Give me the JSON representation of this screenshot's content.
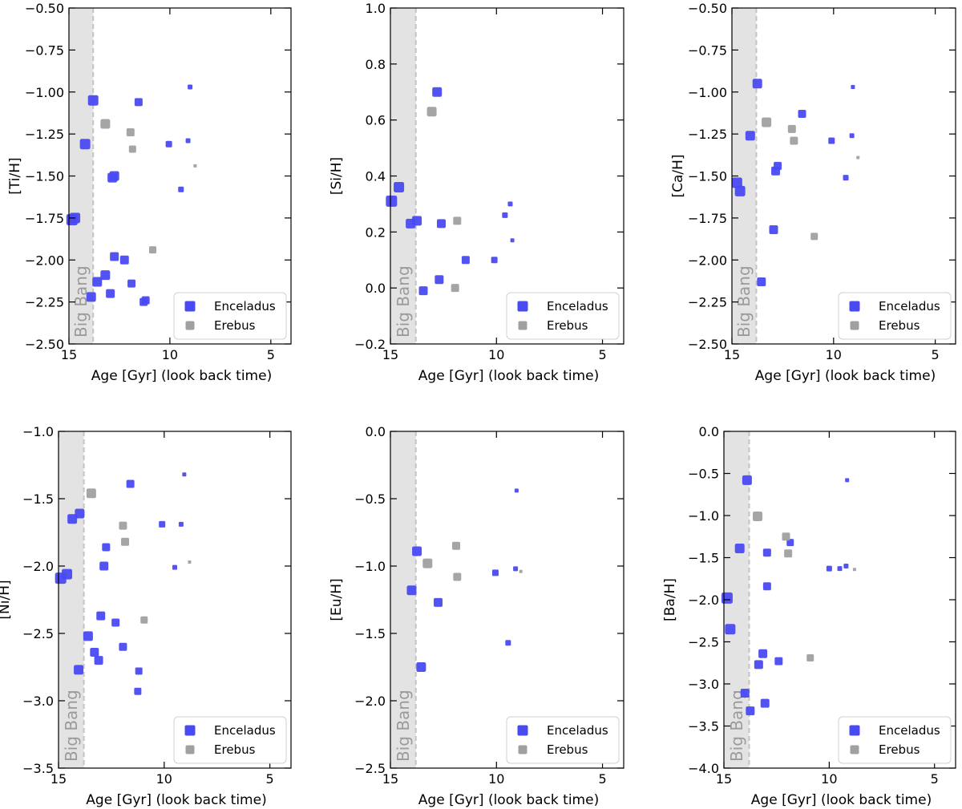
{
  "figure": {
    "series_colors": {
      "Enceladus": "#4a4af2",
      "Erebus": "#a0a0a0"
    },
    "band_color": "#e3e3e3",
    "band_line_color": "#c4c4c4"
  },
  "chart_data": [
    {
      "id": "ti",
      "type": "scatter",
      "xlabel": "Age [Gyr] (look back time)",
      "ylabel": "[Ti/H]",
      "xlim": [
        15,
        4
      ],
      "ylim": [
        -2.5,
        -0.5
      ],
      "xticks": [
        15,
        10,
        5
      ],
      "xtick_labels": [
        "15",
        "10",
        "5"
      ],
      "yticks": [
        -2.5,
        -2.25,
        -2.0,
        -1.75,
        -1.5,
        -1.25,
        -1.0,
        -0.75,
        -0.5
      ],
      "ytick_labels": [
        "−2.50",
        "−2.25",
        "−2.00",
        "−1.75",
        "−1.50",
        "−1.25",
        "−1.00",
        "−0.75",
        "−0.50"
      ],
      "band": {
        "from": 15,
        "to": 13.8,
        "label": "Big Bang"
      },
      "legend": {
        "position": "lower-right",
        "entries": [
          "Enceladus",
          "Erebus"
        ]
      },
      "series": [
        {
          "name": "Enceladus",
          "points": [
            [
              14.85,
              -1.76,
              14
            ],
            [
              14.7,
              -1.75,
              13
            ],
            [
              14.2,
              -1.31,
              13
            ],
            [
              13.8,
              -1.05,
              13
            ],
            [
              12.85,
              -1.51,
              12
            ],
            [
              12.75,
              -1.5,
              12
            ],
            [
              12.75,
              -1.98,
              11
            ],
            [
              12.25,
              -2.0,
              11
            ],
            [
              11.9,
              -2.14,
              10
            ],
            [
              11.55,
              -1.06,
              10
            ],
            [
              11.3,
              -2.25,
              10
            ],
            [
              11.2,
              -2.24,
              10
            ],
            [
              10.05,
              -1.31,
              8
            ],
            [
              9.45,
              -1.58,
              7
            ],
            [
              9.1,
              -1.29,
              6
            ],
            [
              9.0,
              -0.97,
              6
            ],
            [
              13.9,
              -2.22,
              12
            ],
            [
              13.6,
              -2.13,
              12
            ],
            [
              13.2,
              -2.09,
              12
            ],
            [
              12.95,
              -2.2,
              11
            ]
          ]
        },
        {
          "name": "Erebus",
          "points": [
            [
              13.2,
              -1.19,
              12
            ],
            [
              11.95,
              -1.24,
              10
            ],
            [
              11.85,
              -1.34,
              9
            ],
            [
              10.85,
              -1.94,
              9
            ],
            [
              8.75,
              -1.44,
              4
            ]
          ]
        }
      ]
    },
    {
      "id": "si",
      "type": "scatter",
      "xlabel": "Age [Gyr] (look back time)",
      "ylabel": "[Si/H]",
      "xlim": [
        15,
        4
      ],
      "ylim": [
        -0.2,
        1.0
      ],
      "xticks": [
        15,
        10,
        5
      ],
      "xtick_labels": [
        "15",
        "10",
        "5"
      ],
      "yticks": [
        -0.2,
        0.0,
        0.2,
        0.4,
        0.6,
        0.8,
        1.0
      ],
      "ytick_labels": [
        "−0.2",
        "0.0",
        "0.2",
        "0.4",
        "0.6",
        "0.8",
        "1.0"
      ],
      "band": {
        "from": 15,
        "to": 13.8,
        "label": "Big Bang"
      },
      "legend": {
        "position": "lower-right",
        "entries": [
          "Enceladus",
          "Erebus"
        ]
      },
      "series": [
        {
          "name": "Enceladus",
          "points": [
            [
              14.95,
              0.31,
              14
            ],
            [
              14.6,
              0.36,
              13
            ],
            [
              14.05,
              0.23,
              12
            ],
            [
              13.75,
              0.24,
              12
            ],
            [
              13.45,
              -0.01,
              11
            ],
            [
              12.8,
              0.7,
              12
            ],
            [
              12.7,
              0.03,
              11
            ],
            [
              12.6,
              0.23,
              11
            ],
            [
              11.45,
              0.1,
              10
            ],
            [
              10.1,
              0.1,
              8
            ],
            [
              9.6,
              0.26,
              7
            ],
            [
              9.35,
              0.3,
              6
            ],
            [
              9.25,
              0.17,
              5
            ]
          ]
        },
        {
          "name": "Erebus",
          "points": [
            [
              13.05,
              0.63,
              12
            ],
            [
              11.85,
              0.24,
              10
            ],
            [
              11.95,
              0.0,
              10
            ]
          ]
        }
      ]
    },
    {
      "id": "ca",
      "type": "scatter",
      "xlabel": "Age [Gyr] (look back time)",
      "ylabel": "[Ca/H]",
      "xlim": [
        15,
        4
      ],
      "ylim": [
        -2.5,
        -0.5
      ],
      "xticks": [
        15,
        10,
        5
      ],
      "xtick_labels": [
        "15",
        "10",
        "5"
      ],
      "yticks": [
        -2.5,
        -2.25,
        -2.0,
        -1.75,
        -1.5,
        -1.25,
        -1.0,
        -0.75,
        -0.5
      ],
      "ytick_labels": [
        "−2.50",
        "−2.25",
        "−2.00",
        "−1.75",
        "−1.50",
        "−1.25",
        "−1.00",
        "−0.75",
        "−0.50"
      ],
      "band": {
        "from": 15,
        "to": 13.8,
        "label": "Big Bang"
      },
      "legend": {
        "position": "lower-right",
        "entries": [
          "Enceladus",
          "Erebus"
        ]
      },
      "series": [
        {
          "name": "Enceladus",
          "points": [
            [
              14.75,
              -1.54,
              13
            ],
            [
              14.6,
              -1.59,
              13
            ],
            [
              14.1,
              -1.26,
              12
            ],
            [
              13.75,
              -0.95,
              12
            ],
            [
              13.55,
              -2.13,
              11
            ],
            [
              12.95,
              -1.82,
              11
            ],
            [
              12.85,
              -1.47,
              11
            ],
            [
              12.75,
              -1.44,
              10
            ],
            [
              11.55,
              -1.13,
              10
            ],
            [
              10.1,
              -1.29,
              8
            ],
            [
              9.4,
              -1.51,
              7
            ],
            [
              9.1,
              -1.26,
              6
            ],
            [
              9.05,
              -0.97,
              5
            ]
          ]
        },
        {
          "name": "Erebus",
          "points": [
            [
              13.3,
              -1.18,
              12
            ],
            [
              12.05,
              -1.22,
              10
            ],
            [
              11.95,
              -1.29,
              10
            ],
            [
              10.95,
              -1.86,
              9
            ],
            [
              8.8,
              -1.39,
              4
            ]
          ]
        }
      ]
    },
    {
      "id": "ni",
      "type": "scatter",
      "xlabel": "Age [Gyr] (look back time)",
      "ylabel": "[Ni/H]",
      "xlim": [
        15,
        4
      ],
      "ylim": [
        -3.5,
        -1.0
      ],
      "xticks": [
        15,
        10,
        5
      ],
      "xtick_labels": [
        "15",
        "10",
        "5"
      ],
      "yticks": [
        -3.5,
        -3.0,
        -2.5,
        -2.0,
        -1.5,
        -1.0
      ],
      "ytick_labels": [
        "−3.5",
        "−3.0",
        "−2.5",
        "−2.0",
        "−1.5",
        "−1.0"
      ],
      "band": {
        "from": 15,
        "to": 13.8,
        "label": "Big Bang"
      },
      "legend": {
        "position": "lower-right",
        "entries": [
          "Enceladus",
          "Erebus"
        ]
      },
      "series": [
        {
          "name": "Enceladus",
          "points": [
            [
              14.9,
              -2.09,
              14
            ],
            [
              14.6,
              -2.06,
              13
            ],
            [
              14.35,
              -1.65,
              12
            ],
            [
              14.0,
              -1.61,
              12
            ],
            [
              14.05,
              -2.77,
              12
            ],
            [
              13.6,
              -2.52,
              12
            ],
            [
              13.3,
              -2.64,
              11
            ],
            [
              13.1,
              -2.7,
              11
            ],
            [
              13.0,
              -2.37,
              11
            ],
            [
              12.85,
              -2.0,
              11
            ],
            [
              12.75,
              -1.86,
              10
            ],
            [
              12.3,
              -2.42,
              10
            ],
            [
              11.95,
              -2.6,
              10
            ],
            [
              11.6,
              -1.39,
              10
            ],
            [
              11.2,
              -2.78,
              9
            ],
            [
              11.25,
              -2.93,
              9
            ],
            [
              10.1,
              -1.69,
              8
            ],
            [
              9.5,
              -2.01,
              6
            ],
            [
              9.2,
              -1.69,
              6
            ],
            [
              9.05,
              -1.32,
              5
            ]
          ]
        },
        {
          "name": "Erebus",
          "points": [
            [
              13.45,
              -1.46,
              12
            ],
            [
              11.95,
              -1.7,
              10
            ],
            [
              11.85,
              -1.82,
              10
            ],
            [
              10.95,
              -2.4,
              9
            ],
            [
              8.8,
              -1.97,
              4
            ]
          ]
        }
      ]
    },
    {
      "id": "eu",
      "type": "scatter",
      "xlabel": "Age [Gyr] (look back time)",
      "ylabel": "[Eu/H]",
      "xlim": [
        15,
        4
      ],
      "ylim": [
        -2.5,
        0.0
      ],
      "xticks": [
        15,
        10,
        5
      ],
      "xtick_labels": [
        "15",
        "10",
        "5"
      ],
      "yticks": [
        -2.5,
        -2.0,
        -1.5,
        -1.0,
        -0.5,
        0.0
      ],
      "ytick_labels": [
        "−2.5",
        "−2.0",
        "−1.5",
        "−1.0",
        "−0.5",
        "0.0"
      ],
      "band": {
        "from": 15,
        "to": 13.8,
        "label": "Big Bang"
      },
      "legend": {
        "position": "lower-right",
        "entries": [
          "Enceladus",
          "Erebus"
        ]
      },
      "series": [
        {
          "name": "Enceladus",
          "points": [
            [
              14.0,
              -1.18,
              12
            ],
            [
              13.55,
              -1.75,
              12
            ],
            [
              13.75,
              -0.89,
              12
            ],
            [
              12.75,
              -1.27,
              11
            ],
            [
              10.05,
              -1.05,
              8
            ],
            [
              9.45,
              -1.57,
              7
            ],
            [
              9.1,
              -1.02,
              6
            ],
            [
              9.05,
              -0.44,
              5
            ]
          ]
        },
        {
          "name": "Erebus",
          "points": [
            [
              13.25,
              -0.98,
              12
            ],
            [
              11.9,
              -0.85,
              10
            ],
            [
              11.85,
              -1.08,
              10
            ],
            [
              8.85,
              -1.04,
              4
            ]
          ]
        }
      ]
    },
    {
      "id": "ba",
      "type": "scatter",
      "xlabel": "Age [Gyr] (look back time)",
      "ylabel": "[Ba/H]",
      "xlim": [
        15,
        4
      ],
      "ylim": [
        -4.0,
        0.0
      ],
      "xticks": [
        15,
        10,
        5
      ],
      "xtick_labels": [
        "15",
        "10",
        "5"
      ],
      "yticks": [
        -4.0,
        -3.5,
        -3.0,
        -2.5,
        -2.0,
        -1.5,
        -1.0,
        -0.5,
        0.0
      ],
      "ytick_labels": [
        "−4.0",
        "−3.5",
        "−3.0",
        "−2.5",
        "−2.0",
        "−1.5",
        "−1.0",
        "−0.5",
        "0.0"
      ],
      "band": {
        "from": 15,
        "to": 13.8,
        "label": "Big Bang"
      },
      "legend": {
        "position": "lower-right",
        "entries": [
          "Enceladus",
          "Erebus"
        ]
      },
      "series": [
        {
          "name": "Enceladus",
          "points": [
            [
              14.85,
              -1.98,
              14
            ],
            [
              14.7,
              -2.35,
              13
            ],
            [
              14.25,
              -1.39,
              12
            ],
            [
              13.9,
              -0.58,
              12
            ],
            [
              14.0,
              -3.11,
              11
            ],
            [
              13.75,
              -3.32,
              11
            ],
            [
              13.35,
              -2.77,
              11
            ],
            [
              13.15,
              -2.64,
              11
            ],
            [
              13.05,
              -3.23,
              11
            ],
            [
              12.95,
              -1.44,
              10
            ],
            [
              12.95,
              -1.84,
              10
            ],
            [
              12.4,
              -2.73,
              10
            ],
            [
              11.85,
              -1.32,
              9
            ],
            [
              10.0,
              -1.63,
              7
            ],
            [
              9.5,
              -1.63,
              6
            ],
            [
              9.2,
              -1.6,
              6
            ],
            [
              9.15,
              -0.58,
              5
            ]
          ]
        },
        {
          "name": "Erebus",
          "points": [
            [
              13.4,
              -1.01,
              12
            ],
            [
              12.05,
              -1.25,
              10
            ],
            [
              11.95,
              -1.45,
              10
            ],
            [
              10.9,
              -2.69,
              9
            ],
            [
              8.8,
              -1.64,
              4
            ]
          ]
        }
      ]
    }
  ]
}
